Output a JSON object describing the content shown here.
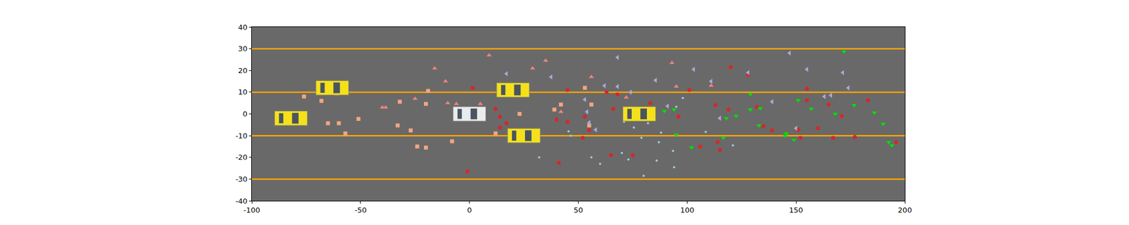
{
  "chart_data": {
    "type": "scatter",
    "xlim": [
      -100,
      200
    ],
    "ylim": [
      -40,
      40
    ],
    "xticks": [
      -100,
      -50,
      0,
      50,
      100,
      150,
      200
    ],
    "yticks": [
      -40,
      -30,
      -20,
      -10,
      0,
      10,
      20,
      30,
      40
    ],
    "grid": false,
    "lanes": {
      "y": [
        30,
        10,
        -10,
        -30
      ],
      "color": "#ffa500"
    },
    "vehicles": {
      "x": [
        -63,
        -82,
        20,
        25,
        78,
        0
      ],
      "y": [
        12,
        -2,
        11,
        -10,
        0,
        0
      ],
      "colors": [
        "#f5e11a",
        "#f5e11a",
        "#f5e11a",
        "#f5e11a",
        "#f5e11a",
        "#e8ecef"
      ]
    },
    "series": [
      {
        "color": "#f4a582",
        "marker": "square",
        "x": [
          -76,
          -68,
          -65,
          -60,
          -57,
          -51,
          -33,
          -32,
          -27,
          -24,
          -20,
          -20,
          -19,
          -8,
          12,
          23,
          39,
          42,
          53,
          55,
          56
        ],
        "y": [
          8,
          6,
          -4.3,
          -4.3,
          -9,
          -2.3,
          -5.3,
          5.6,
          -7.6,
          -15,
          4.6,
          -15.5,
          10.6,
          -12.6,
          -9,
          0,
          2,
          4.3,
          12,
          -5.3,
          4.3
        ]
      },
      {
        "color": "#f08080",
        "marker": "triangle-up",
        "x": [
          -16,
          -11,
          -10,
          -6,
          9,
          5,
          -25,
          -40,
          -38.5,
          -61,
          29,
          35,
          42,
          56,
          72,
          93,
          95,
          111,
          21
        ],
        "y": [
          21,
          15,
          5,
          4.6,
          27,
          4.6,
          7,
          3,
          3,
          9,
          21,
          24.5,
          1,
          17,
          7.6,
          23.5,
          12.6,
          13,
          8.6
        ]
      },
      {
        "color": "#d62728",
        "marker": "circle",
        "x": [
          1.5,
          -1,
          12,
          14,
          14,
          17,
          40,
          41,
          45,
          45,
          52,
          53,
          55,
          63,
          65,
          66,
          68,
          72,
          75,
          83,
          96,
          101,
          106,
          113,
          114,
          115,
          119,
          120,
          128,
          132,
          135,
          139,
          152,
          151,
          155,
          155,
          160,
          165,
          167,
          171,
          177,
          183,
          196
        ],
        "y": [
          12,
          -26.5,
          2.3,
          -1.3,
          -6.3,
          -4.3,
          -2.6,
          -22.5,
          11,
          -3.6,
          -11,
          -1.3,
          -7.6,
          10,
          -19,
          2.3,
          9,
          0,
          -19,
          5,
          -1.3,
          11,
          -15,
          4,
          -13,
          -16.5,
          2,
          21.5,
          18,
          3.3,
          -5.6,
          -7.6,
          -11,
          -7.3,
          11.6,
          6.3,
          -6.6,
          4.3,
          -11,
          -1,
          -10.6,
          6.3,
          -13
        ]
      },
      {
        "color": "#a9a9d9",
        "marker": "triangle-left",
        "x": [
          17,
          37.5,
          53,
          54,
          55,
          58,
          62,
          68,
          68,
          74,
          85.5,
          91,
          103,
          111,
          128,
          139,
          115,
          147,
          150,
          155,
          163,
          166,
          171.5,
          174
        ],
        "y": [
          18.5,
          17,
          6.6,
          1,
          -4,
          -7.3,
          13,
          26,
          12.6,
          10,
          15.5,
          3.6,
          20.5,
          15,
          19,
          5.6,
          -2,
          28,
          -6.6,
          20.5,
          8,
          8.6,
          19,
          12
        ]
      },
      {
        "color": "#9ecae1",
        "marker": "point",
        "x": [
          32,
          45.5,
          46.5,
          56,
          60,
          70,
          73,
          75.5,
          79,
          80,
          82,
          86,
          87,
          88,
          94,
          93.5,
          95,
          98,
          108.5,
          121,
          71
        ],
        "y": [
          -20,
          -8,
          -10,
          -20,
          -23,
          -18,
          -21,
          -6.3,
          -11,
          -28.5,
          -4.3,
          -21.5,
          -13,
          -8.6,
          -24.5,
          -17,
          3.3,
          7.3,
          -8.3,
          -14.5,
          -3.6
        ]
      },
      {
        "color": "#00e000",
        "marker": "triangle-down",
        "x": [
          89.5,
          94,
          95,
          102,
          116.6,
          118,
          122.5,
          129,
          129,
          133,
          133.5,
          145,
          145.5,
          149,
          151,
          157,
          168,
          172,
          176.7,
          186,
          190,
          192.6,
          194
        ],
        "y": [
          1.3,
          2,
          -9.6,
          -15.5,
          -11,
          -2,
          -1,
          9,
          2,
          -5.3,
          2.6,
          -10,
          -9,
          -12,
          6.3,
          2.3,
          0,
          28.7,
          4,
          0.6,
          -4.6,
          -13,
          -14.5
        ]
      }
    ]
  }
}
